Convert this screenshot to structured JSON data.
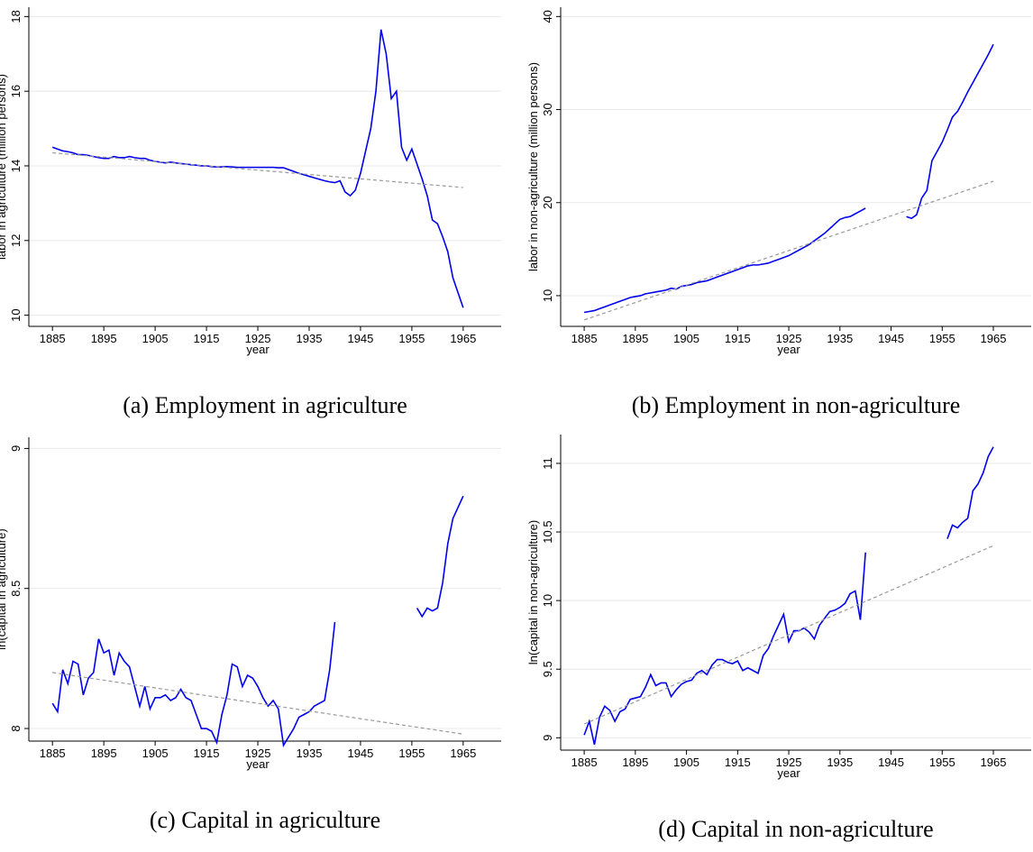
{
  "chart_data": [
    {
      "type": "line",
      "ylabel": "labor in agriculture (million persons)",
      "xlabel": "year",
      "caption": "(a) Employment in agriculture",
      "xlim": [
        1880.4,
        1972.4
      ],
      "ylim": [
        9.7,
        18.25
      ],
      "xticks": [
        1885,
        1895,
        1905,
        1915,
        1925,
        1935,
        1945,
        1955,
        1965
      ],
      "yticks": [
        10,
        12,
        14,
        16,
        18
      ],
      "grid": true,
      "x": [
        1885,
        1886,
        1887,
        1888,
        1889,
        1890,
        1891,
        1892,
        1893,
        1894,
        1895,
        1896,
        1897,
        1898,
        1899,
        1900,
        1901,
        1902,
        1903,
        1904,
        1905,
        1906,
        1907,
        1908,
        1909,
        1910,
        1911,
        1912,
        1913,
        1914,
        1915,
        1916,
        1917,
        1918,
        1919,
        1920,
        1921,
        1922,
        1923,
        1924,
        1925,
        1926,
        1927,
        1928,
        1929,
        1930,
        1931,
        1932,
        1933,
        1934,
        1935,
        1936,
        1937,
        1938,
        1939,
        1940,
        1941,
        1942,
        1943,
        1944,
        1945,
        1946,
        1947,
        1948,
        1949,
        1950,
        1951,
        1952,
        1953,
        1954,
        1955,
        1956,
        1957,
        1958,
        1959,
        1960,
        1961,
        1962,
        1963,
        1964,
        1965
      ],
      "series": [
        {
          "color": "#0000ee",
          "values": [
            14.5,
            14.45,
            14.4,
            14.38,
            14.35,
            14.3,
            14.3,
            14.28,
            14.25,
            14.22,
            14.2,
            14.2,
            14.25,
            14.22,
            14.22,
            14.25,
            14.22,
            14.2,
            14.2,
            14.15,
            14.12,
            14.1,
            14.08,
            14.1,
            14.08,
            14.06,
            14.05,
            14.03,
            14.02,
            14.0,
            14.0,
            13.98,
            13.97,
            13.97,
            13.98,
            13.97,
            13.96,
            13.96,
            13.96,
            13.96,
            13.96,
            13.96,
            13.96,
            13.96,
            13.95,
            13.95,
            13.9,
            13.85,
            13.8,
            13.76,
            13.72,
            13.68,
            13.64,
            13.6,
            13.57,
            13.55,
            13.6,
            13.3,
            13.2,
            13.35,
            13.8,
            14.4,
            15.0,
            16.0,
            17.65,
            17.0,
            15.8,
            16.0,
            14.5,
            14.15,
            14.45,
            14.05,
            13.65,
            13.2,
            12.55,
            12.45,
            12.1,
            11.7,
            11.0,
            10.6,
            10.2
          ]
        },
        {
          "color": "#999999",
          "dashed": true,
          "x": [
            1885,
            1965
          ],
          "values": [
            14.35,
            13.42
          ]
        }
      ]
    },
    {
      "type": "line",
      "ylabel": "labor in non-agriculture (million persons)",
      "xlabel": "year",
      "caption": "(b) Employment in non-agriculture",
      "xlim": [
        1880.4,
        1972.4
      ],
      "ylim": [
        6.7,
        41
      ],
      "xticks": [
        1885,
        1895,
        1905,
        1915,
        1925,
        1935,
        1945,
        1955,
        1965
      ],
      "yticks": [
        10,
        20,
        30,
        40
      ],
      "grid": true,
      "x": [
        1885,
        1886,
        1887,
        1888,
        1889,
        1890,
        1891,
        1892,
        1893,
        1894,
        1895,
        1896,
        1897,
        1898,
        1899,
        1900,
        1901,
        1902,
        1903,
        1904,
        1905,
        1906,
        1907,
        1908,
        1909,
        1910,
        1911,
        1912,
        1913,
        1914,
        1915,
        1916,
        1917,
        1918,
        1919,
        1920,
        1921,
        1922,
        1923,
        1924,
        1925,
        1926,
        1927,
        1928,
        1929,
        1930,
        1931,
        1932,
        1933,
        1934,
        1935,
        1936,
        1937,
        1938,
        1939,
        1940,
        1941,
        1942,
        1943,
        1944,
        1945,
        1946,
        1947,
        1948,
        1949,
        1950,
        1951,
        1952,
        1953,
        1954,
        1955,
        1956,
        1957,
        1958,
        1959,
        1960,
        1961,
        1962,
        1963,
        1964,
        1965
      ],
      "series": [
        {
          "color": "#0000ee",
          "values": [
            8.2,
            8.3,
            8.4,
            8.6,
            8.8,
            9.0,
            9.2,
            9.4,
            9.6,
            9.8,
            9.9,
            10.0,
            10.2,
            10.3,
            10.4,
            10.5,
            10.6,
            10.8,
            10.7,
            11.0,
            11.1,
            11.2,
            11.4,
            11.5,
            11.6,
            11.8,
            12.0,
            12.2,
            12.4,
            12.6,
            12.8,
            13.0,
            13.2,
            13.3,
            13.3,
            13.4,
            13.5,
            13.7,
            13.9,
            14.1,
            14.3,
            14.6,
            14.9,
            15.2,
            15.5,
            15.9,
            16.3,
            16.7,
            17.2,
            17.7,
            18.2,
            18.4,
            18.5,
            18.8,
            19.1,
            19.4,
            null,
            null,
            null,
            null,
            null,
            null,
            null,
            18.5,
            18.3,
            18.7,
            20.5,
            21.3,
            24.5,
            25.5,
            26.5,
            27.8,
            29.2,
            29.8,
            30.8,
            31.9,
            32.9,
            33.9,
            34.9,
            35.9,
            37.0
          ]
        },
        {
          "color": "#999999",
          "dashed": true,
          "x": [
            1885,
            1965
          ],
          "values": [
            7.4,
            22.3
          ]
        }
      ]
    },
    {
      "type": "line",
      "ylabel": "ln(capital in agriculture)",
      "xlabel": "year",
      "caption": "(c) Capital in agriculture",
      "xlim": [
        1880.4,
        1972.4
      ],
      "ylim": [
        7.955,
        9.04
      ],
      "xticks": [
        1885,
        1895,
        1905,
        1915,
        1925,
        1935,
        1945,
        1955,
        1965
      ],
      "yticks": [
        8,
        8.5,
        9
      ],
      "grid": true,
      "x": [
        1885,
        1886,
        1887,
        1888,
        1889,
        1890,
        1891,
        1892,
        1893,
        1894,
        1895,
        1896,
        1897,
        1898,
        1899,
        1900,
        1901,
        1902,
        1903,
        1904,
        1905,
        1906,
        1907,
        1908,
        1909,
        1910,
        1911,
        1912,
        1913,
        1914,
        1915,
        1916,
        1917,
        1918,
        1919,
        1920,
        1921,
        1922,
        1923,
        1924,
        1925,
        1926,
        1927,
        1928,
        1929,
        1930,
        1931,
        1932,
        1933,
        1934,
        1935,
        1936,
        1937,
        1938,
        1939,
        1940,
        1941,
        1942,
        1943,
        1944,
        1945,
        1946,
        1947,
        1948,
        1949,
        1950,
        1951,
        1952,
        1953,
        1954,
        1955,
        1956,
        1957,
        1958,
        1959,
        1960,
        1961,
        1962,
        1963,
        1964,
        1965
      ],
      "series": [
        {
          "color": "#0000ee",
          "values": [
            8.09,
            8.06,
            8.21,
            8.16,
            8.24,
            8.23,
            8.12,
            8.18,
            8.2,
            8.32,
            8.27,
            8.28,
            8.19,
            8.27,
            8.24,
            8.22,
            8.15,
            8.08,
            8.15,
            8.07,
            8.11,
            8.11,
            8.12,
            8.1,
            8.11,
            8.14,
            8.11,
            8.1,
            8.05,
            8.0,
            8.0,
            7.99,
            7.95,
            8.05,
            8.12,
            8.23,
            8.22,
            8.15,
            8.19,
            8.18,
            8.15,
            8.11,
            8.08,
            8.1,
            8.07,
            7.94,
            7.97,
            8.0,
            8.04,
            8.05,
            8.06,
            8.08,
            8.09,
            8.1,
            8.21,
            8.38,
            null,
            null,
            null,
            null,
            null,
            null,
            null,
            null,
            null,
            null,
            null,
            null,
            null,
            null,
            null,
            8.43,
            8.4,
            8.43,
            8.42,
            8.43,
            8.52,
            8.66,
            8.75,
            8.79,
            8.83
          ]
        },
        {
          "color": "#999999",
          "dashed": true,
          "x": [
            1885,
            1965
          ],
          "values": [
            8.2,
            7.98
          ]
        }
      ]
    },
    {
      "type": "line",
      "ylabel": "ln(capital in non-agriculture)",
      "xlabel": "year",
      "caption": "(d) Capital in non-agriculture",
      "xlim": [
        1880.4,
        1972.4
      ],
      "ylim": [
        8.91,
        11.21
      ],
      "xticks": [
        1885,
        1895,
        1905,
        1915,
        1925,
        1935,
        1945,
        1955,
        1965
      ],
      "yticks": [
        9,
        9.5,
        10,
        10.5,
        11
      ],
      "grid": true,
      "x": [
        1885,
        1886,
        1887,
        1888,
        1889,
        1890,
        1891,
        1892,
        1893,
        1894,
        1895,
        1896,
        1897,
        1898,
        1899,
        1900,
        1901,
        1902,
        1903,
        1904,
        1905,
        1906,
        1907,
        1908,
        1909,
        1910,
        1911,
        1912,
        1913,
        1914,
        1915,
        1916,
        1917,
        1918,
        1919,
        1920,
        1921,
        1922,
        1923,
        1924,
        1925,
        1926,
        1927,
        1928,
        1929,
        1930,
        1931,
        1932,
        1933,
        1934,
        1935,
        1936,
        1937,
        1938,
        1939,
        1940,
        1941,
        1942,
        1943,
        1944,
        1945,
        1946,
        1947,
        1948,
        1949,
        1950,
        1951,
        1952,
        1953,
        1954,
        1955,
        1956,
        1957,
        1958,
        1959,
        1960,
        1961,
        1962,
        1963,
        1964,
        1965
      ],
      "series": [
        {
          "color": "#0000ee",
          "values": [
            9.02,
            9.12,
            8.95,
            9.15,
            9.23,
            9.2,
            9.12,
            9.19,
            9.21,
            9.28,
            9.29,
            9.3,
            9.37,
            9.46,
            9.38,
            9.4,
            9.4,
            9.3,
            9.35,
            9.39,
            9.41,
            9.42,
            9.47,
            9.49,
            9.46,
            9.53,
            9.57,
            9.57,
            9.55,
            9.54,
            9.56,
            9.49,
            9.51,
            9.49,
            9.47,
            9.6,
            9.65,
            9.74,
            9.82,
            9.9,
            9.7,
            9.78,
            9.78,
            9.8,
            9.77,
            9.72,
            9.82,
            9.87,
            9.92,
            9.93,
            9.95,
            9.98,
            10.05,
            10.07,
            9.86,
            10.35,
            null,
            null,
            null,
            null,
            null,
            null,
            null,
            null,
            null,
            null,
            null,
            null,
            null,
            null,
            null,
            10.45,
            10.55,
            10.53,
            10.57,
            10.6,
            10.8,
            10.85,
            10.93,
            11.05,
            11.12
          ]
        },
        {
          "color": "#999999",
          "dashed": true,
          "x": [
            1885,
            1965
          ],
          "values": [
            9.1,
            10.4
          ]
        }
      ]
    }
  ]
}
